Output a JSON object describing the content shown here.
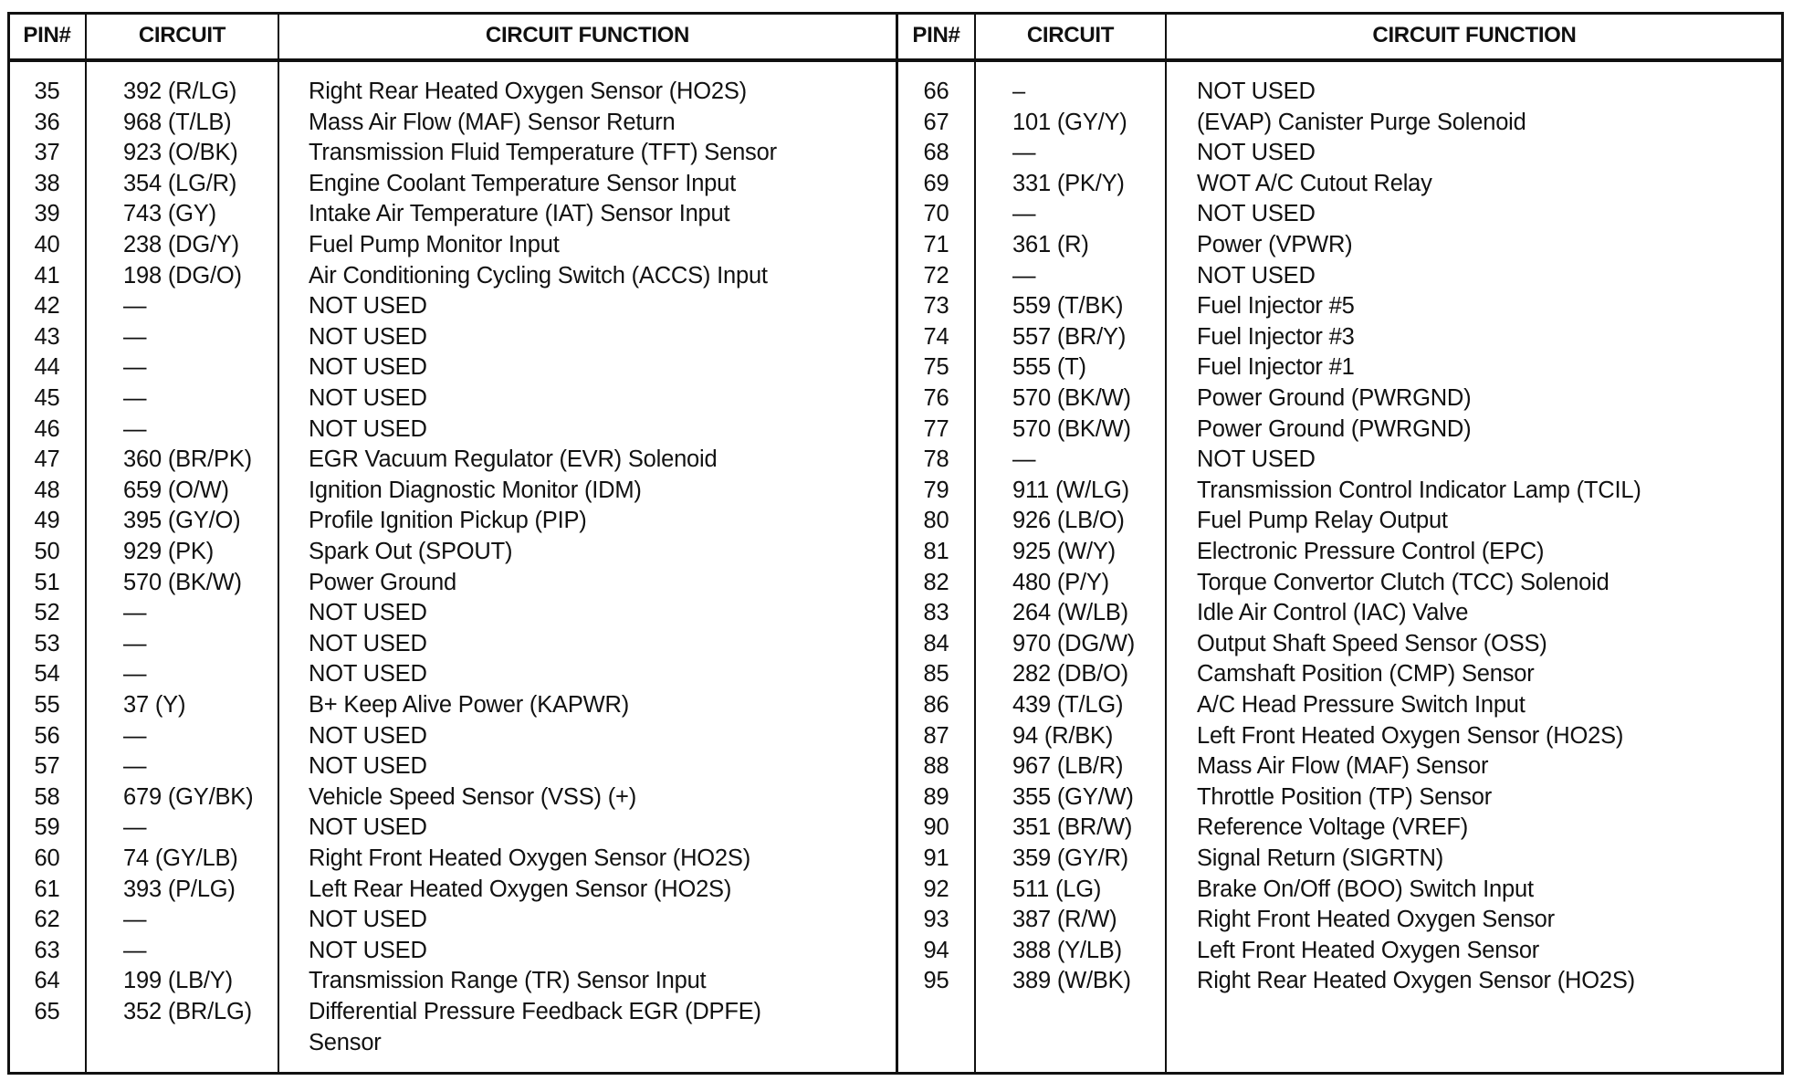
{
  "headers": {
    "left": {
      "pin": "PIN#",
      "circuit": "CIRCUIT",
      "function": "CIRCUIT FUNCTION"
    },
    "right": {
      "pin": "PIN#",
      "circuit": "CIRCUIT",
      "function": "CIRCUIT FUNCTION"
    }
  },
  "left_rows": [
    {
      "pin": "35",
      "circuit": "392 (R/LG)",
      "function": "Right Rear Heated Oxygen Sensor (HO2S)"
    },
    {
      "pin": "36",
      "circuit": "968 (T/LB)",
      "function": "Mass Air Flow (MAF) Sensor Return"
    },
    {
      "pin": "37",
      "circuit": "923 (O/BK)",
      "function": "Transmission Fluid Temperature (TFT) Sensor"
    },
    {
      "pin": "38",
      "circuit": "354 (LG/R)",
      "function": "Engine Coolant Temperature Sensor Input"
    },
    {
      "pin": "39",
      "circuit": "743 (GY)",
      "function": "Intake Air Temperature (IAT) Sensor Input"
    },
    {
      "pin": "40",
      "circuit": "238 (DG/Y)",
      "function": "Fuel Pump Monitor Input"
    },
    {
      "pin": "41",
      "circuit": "198 (DG/O)",
      "function": "Air Conditioning Cycling Switch (ACCS) Input"
    },
    {
      "pin": "42",
      "circuit": "—",
      "function": "NOT USED"
    },
    {
      "pin": "43",
      "circuit": "—",
      "function": "NOT USED"
    },
    {
      "pin": "44",
      "circuit": "—",
      "function": "NOT USED"
    },
    {
      "pin": "45",
      "circuit": "—",
      "function": "NOT USED"
    },
    {
      "pin": "46",
      "circuit": "—",
      "function": "NOT USED"
    },
    {
      "pin": "47",
      "circuit": "360 (BR/PK)",
      "function": "EGR Vacuum Regulator (EVR) Solenoid"
    },
    {
      "pin": "48",
      "circuit": "659 (O/W)",
      "function": "Ignition Diagnostic Monitor (IDM)"
    },
    {
      "pin": "49",
      "circuit": "395 (GY/O)",
      "function": "Profile Ignition Pickup (PIP)"
    },
    {
      "pin": "50",
      "circuit": "929 (PK)",
      "function": "Spark Out (SPOUT)"
    },
    {
      "pin": "51",
      "circuit": "570 (BK/W)",
      "function": "Power Ground"
    },
    {
      "pin": "52",
      "circuit": "—",
      "function": "NOT USED"
    },
    {
      "pin": "53",
      "circuit": "—",
      "function": "NOT USED"
    },
    {
      "pin": "54",
      "circuit": "—",
      "function": "NOT USED"
    },
    {
      "pin": "55",
      "circuit": "37 (Y)",
      "function": "B+ Keep Alive Power (KAPWR)"
    },
    {
      "pin": "56",
      "circuit": "—",
      "function": "NOT USED"
    },
    {
      "pin": "57",
      "circuit": "—",
      "function": "NOT USED"
    },
    {
      "pin": "58",
      "circuit": "679 (GY/BK)",
      "function": "Vehicle Speed Sensor (VSS) (+)"
    },
    {
      "pin": "59",
      "circuit": "—",
      "function": "NOT USED"
    },
    {
      "pin": "60",
      "circuit": "74 (GY/LB)",
      "function": "Right Front Heated Oxygen Sensor (HO2S)"
    },
    {
      "pin": "61",
      "circuit": "393 (P/LG)",
      "function": "Left Rear Heated Oxygen Sensor (HO2S)"
    },
    {
      "pin": "62",
      "circuit": "—",
      "function": "NOT USED"
    },
    {
      "pin": "63",
      "circuit": "—",
      "function": "NOT USED"
    },
    {
      "pin": "64",
      "circuit": "199 (LB/Y)",
      "function": "Transmission Range (TR) Sensor Input"
    },
    {
      "pin": "65",
      "circuit": "352 (BR/LG)",
      "function": "Differential Pressure Feedback EGR (DPFE)",
      "function_line2": "Sensor"
    }
  ],
  "right_rows": [
    {
      "pin": "66",
      "circuit": "–",
      "function": "NOT USED"
    },
    {
      "pin": "67",
      "circuit": "101 (GY/Y)",
      "function": "(EVAP) Canister Purge Solenoid"
    },
    {
      "pin": "68",
      "circuit": "—",
      "function": "NOT USED"
    },
    {
      "pin": "69",
      "circuit": "331 (PK/Y)",
      "function": "WOT A/C Cutout Relay"
    },
    {
      "pin": "70",
      "circuit": "—",
      "function": "NOT USED"
    },
    {
      "pin": "71",
      "circuit": "361 (R)",
      "function": "Power (VPWR)"
    },
    {
      "pin": "72",
      "circuit": "—",
      "function": "NOT USED"
    },
    {
      "pin": "73",
      "circuit": "559 (T/BK)",
      "function": "Fuel Injector #5"
    },
    {
      "pin": "74",
      "circuit": "557 (BR/Y)",
      "function": "Fuel Injector #3"
    },
    {
      "pin": "75",
      "circuit": "555 (T)",
      "function": "Fuel Injector #1"
    },
    {
      "pin": "76",
      "circuit": "570 (BK/W)",
      "function": "Power Ground (PWRGND)"
    },
    {
      "pin": "77",
      "circuit": "570 (BK/W)",
      "function": "Power Ground (PWRGND)"
    },
    {
      "pin": "78",
      "circuit": "—",
      "function": "NOT USED"
    },
    {
      "pin": "79",
      "circuit": "911 (W/LG)",
      "function": "Transmission Control Indicator Lamp (TCIL)"
    },
    {
      "pin": "80",
      "circuit": "926 (LB/O)",
      "function": "Fuel Pump Relay Output"
    },
    {
      "pin": "81",
      "circuit": "925 (W/Y)",
      "function": "Electronic Pressure Control (EPC)"
    },
    {
      "pin": "82",
      "circuit": "480 (P/Y)",
      "function": "Torque Convertor Clutch (TCC) Solenoid"
    },
    {
      "pin": "83",
      "circuit": "264 (W/LB)",
      "function": "Idle Air Control (IAC) Valve"
    },
    {
      "pin": "84",
      "circuit": "970 (DG/W)",
      "function": "Output Shaft Speed Sensor (OSS)"
    },
    {
      "pin": "85",
      "circuit": "282 (DB/O)",
      "function": "Camshaft Position (CMP) Sensor"
    },
    {
      "pin": "86",
      "circuit": "439 (T/LG)",
      "function": "A/C Head Pressure Switch Input"
    },
    {
      "pin": "87",
      "circuit": "94 (R/BK)",
      "function": "Left Front Heated Oxygen Sensor (HO2S)"
    },
    {
      "pin": "88",
      "circuit": "967 (LB/R)",
      "function": "Mass Air Flow (MAF) Sensor"
    },
    {
      "pin": "89",
      "circuit": "355 (GY/W)",
      "function": "Throttle Position (TP) Sensor"
    },
    {
      "pin": "90",
      "circuit": "351 (BR/W)",
      "function": "Reference Voltage (VREF)"
    },
    {
      "pin": "91",
      "circuit": "359 (GY/R)",
      "function": "Signal Return (SIGRTN)"
    },
    {
      "pin": "92",
      "circuit": "511 (LG)",
      "function": "Brake On/Off (BOO) Switch Input"
    },
    {
      "pin": "93",
      "circuit": "387 (R/W)",
      "function": "Right Front Heated Oxygen Sensor"
    },
    {
      "pin": "94",
      "circuit": "388 (Y/LB)",
      "function": "Left Front Heated Oxygen Sensor"
    },
    {
      "pin": "95",
      "circuit": "389 (W/BK)",
      "function": "Right Rear Heated Oxygen Sensor (HO2S)"
    }
  ]
}
